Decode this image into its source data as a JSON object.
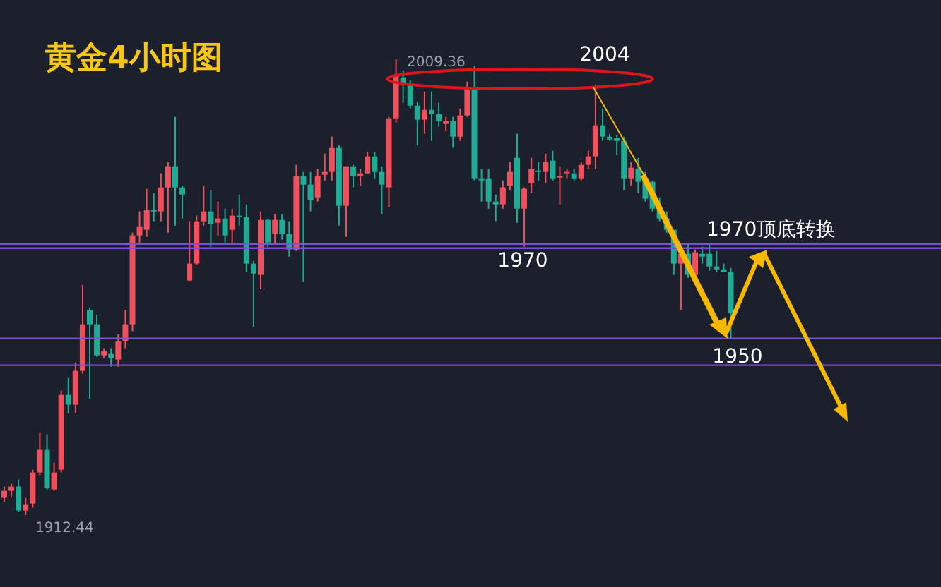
{
  "chart_data": {
    "type": "candlestick",
    "title": "黄金4小时图",
    "categories": [
      null,
      null,
      null,
      null,
      null,
      null,
      null,
      null,
      null,
      null,
      null,
      null,
      null,
      null,
      null,
      null,
      null,
      null,
      null,
      null,
      null,
      null,
      null,
      null,
      null,
      null,
      null,
      null,
      null,
      null,
      null,
      null,
      null,
      null,
      null,
      null,
      null,
      null,
      null,
      null,
      null,
      null,
      null,
      null,
      null,
      null,
      null,
      null,
      null,
      null,
      null,
      null,
      null,
      null,
      null,
      null,
      null,
      null,
      null,
      null,
      null,
      null,
      null,
      null,
      null,
      null,
      null,
      null,
      null,
      null,
      null,
      null,
      null,
      null,
      null,
      null,
      null,
      null,
      null,
      null,
      null,
      null,
      null,
      null,
      null,
      null,
      null,
      null,
      null,
      null,
      null,
      null,
      null,
      null,
      null,
      null,
      null,
      null,
      null,
      null,
      null,
      null,
      null
    ],
    "ohlc": [
      [
        1916.1,
        1918.5,
        1915.2,
        1917.6
      ],
      [
        1917.6,
        1919.1,
        1916.4,
        1918.5
      ],
      [
        1918.5,
        1920.0,
        1913.1,
        1913.4
      ],
      [
        1913.4,
        1916.1,
        1912.44,
        1914.6
      ],
      [
        1914.9,
        1922.1,
        1914.0,
        1921.5
      ],
      [
        1921.5,
        1929.9,
        1920.9,
        1926.3
      ],
      [
        1926.3,
        1929.6,
        1917.9,
        1918.2
      ],
      [
        1917.9,
        1923.6,
        1917.6,
        1921.5
      ],
      [
        1922.1,
        1938.9,
        1921.5,
        1938.0
      ],
      [
        1938.0,
        1941.6,
        1934.1,
        1935.9
      ],
      [
        1935.9,
        1944.9,
        1934.1,
        1943.1
      ],
      [
        1943.1,
        1961.4,
        1942.5,
        1953.0
      ],
      [
        1956.0,
        1956.6,
        1937.1,
        1953.0
      ],
      [
        1953.0,
        1955.1,
        1946.1,
        1946.4
      ],
      [
        1946.4,
        1947.9,
        1945.8,
        1947.3
      ],
      [
        1946.7,
        1947.9,
        1944.0,
        1945.8
      ],
      [
        1945.5,
        1950.9,
        1944.0,
        1949.4
      ],
      [
        1949.4,
        1956.0,
        1947.9,
        1953.0
      ],
      [
        1953.0,
        1972.5,
        1951.5,
        1971.9
      ],
      [
        1971.9,
        1977.0,
        1970.4,
        1973.7
      ],
      [
        1973.1,
        1981.8,
        1971.6,
        1977.3
      ],
      [
        1977.3,
        1980.9,
        1974.9,
        1977.0
      ],
      [
        1977.0,
        1985.1,
        1974.9,
        1982.1
      ],
      [
        1982.1,
        1987.5,
        1972.5,
        1986.6
      ],
      [
        1986.6,
        1997.1,
        1974.0,
        1982.1
      ],
      [
        1982.1,
        1982.4,
        1975.5,
        1980.6
      ],
      [
        1962.3,
        1974.9,
        1962.3,
        1965.9
      ],
      [
        1965.9,
        1976.1,
        1965.6,
        1974.9
      ],
      [
        1974.9,
        1982.4,
        1974.0,
        1977.0
      ],
      [
        1977.0,
        1981.5,
        1969.5,
        1974.3
      ],
      [
        1974.6,
        1979.1,
        1971.9,
        1975.5
      ],
      [
        1975.5,
        1977.6,
        1970.4,
        1971.9
      ],
      [
        1973.1,
        1977.6,
        1970.4,
        1976.1
      ],
      [
        1976.1,
        1980.6,
        1974.0,
        1975.8
      ],
      [
        1975.8,
        1978.5,
        1964.1,
        1965.9
      ],
      [
        1965.9,
        1966.5,
        1952.4,
        1963.8
      ],
      [
        1963.5,
        1977.0,
        1960.5,
        1975.2
      ],
      [
        1975.2,
        1975.5,
        1969.5,
        1970.4
      ],
      [
        1972.2,
        1976.4,
        1970.1,
        1975.2
      ],
      [
        1975.2,
        1976.4,
        1971.0,
        1972.2
      ],
      [
        1972.2,
        1974.9,
        1967.4,
        1968.9
      ],
      [
        1968.9,
        1986.9,
        1968.6,
        1984.5
      ],
      [
        1984.5,
        1985.4,
        1962.0,
        1982.7
      ],
      [
        1982.7,
        1985.4,
        1977.0,
        1979.4
      ],
      [
        1980.0,
        1986.0,
        1979.1,
        1984.5
      ],
      [
        1984.8,
        1989.3,
        1983.6,
        1985.4
      ],
      [
        1985.4,
        1992.9,
        1983.6,
        1990.5
      ],
      [
        1990.5,
        1991.1,
        1974.0,
        1978.2
      ],
      [
        1978.2,
        1986.6,
        1971.6,
        1986.6
      ],
      [
        1986.6,
        1986.9,
        1982.1,
        1984.5
      ],
      [
        1984.5,
        1986.0,
        1982.4,
        1985.1
      ],
      [
        1985.1,
        1989.6,
        1985.1,
        1988.7
      ],
      [
        1988.7,
        1989.6,
        1983.9,
        1985.4
      ],
      [
        1985.4,
        1986.6,
        1976.4,
        1982.7
      ],
      [
        1982.1,
        1997.1,
        1977.9,
        1996.8
      ],
      [
        1996.8,
        2009.36,
        1995.9,
        2006.1
      ],
      [
        2005.5,
        2007.0,
        2000.1,
        2004.0
      ],
      [
        2004.0,
        2004.9,
        1998.9,
        1999.5
      ],
      [
        1999.5,
        2000.4,
        1991.1,
        1996.5
      ],
      [
        1996.5,
        2002.5,
        1993.5,
        1998.6
      ],
      [
        1998.6,
        2002.5,
        1992.0,
        1997.7
      ],
      [
        1997.7,
        2000.1,
        1995.0,
        1996.2
      ],
      [
        1995.6,
        1997.1,
        1994.1,
        1996.2
      ],
      [
        1996.2,
        1997.1,
        1990.5,
        1992.9
      ],
      [
        1992.9,
        1998.9,
        1992.0,
        1997.4
      ],
      [
        1997.4,
        2004.6,
        1997.1,
        2003.1
      ],
      [
        2003.1,
        2007.9,
        1983.6,
        1983.9
      ],
      [
        1983.9,
        1986.0,
        1979.1,
        1983.6
      ],
      [
        1983.9,
        1986.0,
        1977.6,
        1979.1
      ],
      [
        1979.1,
        1980.6,
        1974.9,
        1978.5
      ],
      [
        1978.5,
        1983.6,
        1977.6,
        1982.1
      ],
      [
        1982.4,
        1987.5,
        1981.5,
        1985.4
      ],
      [
        1988.4,
        1993.5,
        1974.6,
        1977.6
      ],
      [
        1977.6,
        1982.1,
        1969.5,
        1981.8
      ],
      [
        1983.0,
        1988.4,
        1980.9,
        1986.0
      ],
      [
        1985.7,
        1987.5,
        1983.6,
        1985.4
      ],
      [
        1985.4,
        1989.3,
        1983.0,
        1987.5
      ],
      [
        1987.8,
        1989.9,
        1983.6,
        1983.9
      ],
      [
        1984.2,
        1986.6,
        1978.5,
        1984.5
      ],
      [
        1985.1,
        1986.0,
        1983.9,
        1985.4
      ],
      [
        1985.1,
        1986.0,
        1983.6,
        1983.9
      ],
      [
        1983.9,
        1987.5,
        1983.6,
        1986.9
      ],
      [
        1986.9,
        1989.9,
        1986.0,
        1988.7
      ],
      [
        1988.7,
        2004.0,
        1986.0,
        1995.3
      ],
      [
        1995.3,
        1998.9,
        1992.0,
        1992.9
      ],
      [
        1992.9,
        1993.5,
        1992.0,
        1992.3
      ],
      [
        1992.6,
        1993.2,
        1989.0,
        1992.0
      ],
      [
        1992.0,
        1992.9,
        1981.5,
        1983.9
      ],
      [
        1983.9,
        1987.5,
        1982.4,
        1986.3
      ],
      [
        1986.0,
        1988.4,
        1980.9,
        1983.3
      ],
      [
        1983.9,
        1985.4,
        1979.1,
        1979.7
      ],
      [
        1983.3,
        1983.6,
        1977.0,
        1977.6
      ],
      [
        1977.6,
        1980.0,
        1974.9,
        1975.5
      ],
      [
        1975.5,
        1977.0,
        1972.5,
        1973.1
      ],
      [
        1973.1,
        1973.1,
        1963.5,
        1965.9
      ],
      [
        1965.9,
        1968.9,
        1956.0,
        1968.0
      ],
      [
        1968.0,
        1970.1,
        1962.9,
        1963.5
      ],
      [
        1963.5,
        1968.9,
        1962.9,
        1968.3
      ],
      [
        1968.0,
        1969.5,
        1965.9,
        1967.4
      ],
      [
        1968.0,
        1970.1,
        1964.4,
        1965.3
      ],
      [
        1965.3,
        1968.6,
        1964.1,
        1964.7
      ],
      [
        1964.7,
        1965.9,
        1964.1,
        1964.1
      ],
      [
        1964.1,
        1965.0,
        1950.0,
        1955.4
      ]
    ],
    "colors": [
      "#f0505c",
      "#f0505c",
      "#22ab94",
      "#f0505c",
      "#f0505c",
      "#f0505c",
      "#22ab94",
      "#f0505c",
      "#f0505c",
      "#22ab94",
      "#f0505c",
      "#f0505c",
      "#22ab94",
      "#22ab94",
      "#f0505c",
      "#22ab94",
      "#f0505c",
      "#f0505c",
      "#f0505c",
      "#f0505c",
      "#f0505c",
      "#22ab94",
      "#f0505c",
      "#f0505c",
      "#22ab94",
      "#22ab94",
      "#f0505c",
      "#f0505c",
      "#f0505c",
      "#22ab94",
      "#f0505c",
      "#22ab94",
      "#f0505c",
      "#22ab94",
      "#22ab94",
      "#22ab94",
      "#f0505c",
      "#22ab94",
      "#f0505c",
      "#22ab94",
      "#22ab94",
      "#f0505c",
      "#22ab94",
      "#22ab94",
      "#f0505c",
      "#f0505c",
      "#f0505c",
      "#22ab94",
      "#f0505c",
      "#22ab94",
      "#f0505c",
      "#f0505c",
      "#22ab94",
      "#22ab94",
      "#f0505c",
      "#f0505c",
      "#22ab94",
      "#22ab94",
      "#22ab94",
      "#f0505c",
      "#22ab94",
      "#22ab94",
      "#f0505c",
      "#22ab94",
      "#f0505c",
      "#f0505c",
      "#22ab94",
      "#22ab94",
      "#22ab94",
      "#22ab94",
      "#f0505c",
      "#f0505c",
      "#22ab94",
      "#f0505c",
      "#f0505c",
      "#22ab94",
      "#f0505c",
      "#22ab94",
      "#f0505c",
      "#f0505c",
      "#22ab94",
      "#f0505c",
      "#f0505c",
      "#f0505c",
      "#22ab94",
      "#22ab94",
      "#22ab94",
      "#22ab94",
      "#f0505c",
      "#22ab94",
      "#22ab94",
      "#22ab94",
      "#22ab94",
      "#22ab94",
      "#22ab94",
      "#f0505c",
      "#22ab94",
      "#f0505c",
      "#22ab94",
      "#22ab94",
      "#22ab94",
      "#22ab94",
      "#22ab94"
    ],
    "ref_lines": [
      {
        "axis": "y",
        "value": 1970.1,
        "color": "#7b4fd6"
      },
      {
        "axis": "y",
        "value": 1969.2,
        "color": "#7b4fd6"
      },
      {
        "axis": "y",
        "value": 1950,
        "color": "#7b4fd6"
      },
      {
        "axis": "y",
        "value": 1944.3,
        "color": "#7b4fd6"
      }
    ],
    "annotations": [
      "2009.36",
      "2004",
      "1970",
      "1950",
      "1970顶底转换",
      "1912.44"
    ]
  }
}
